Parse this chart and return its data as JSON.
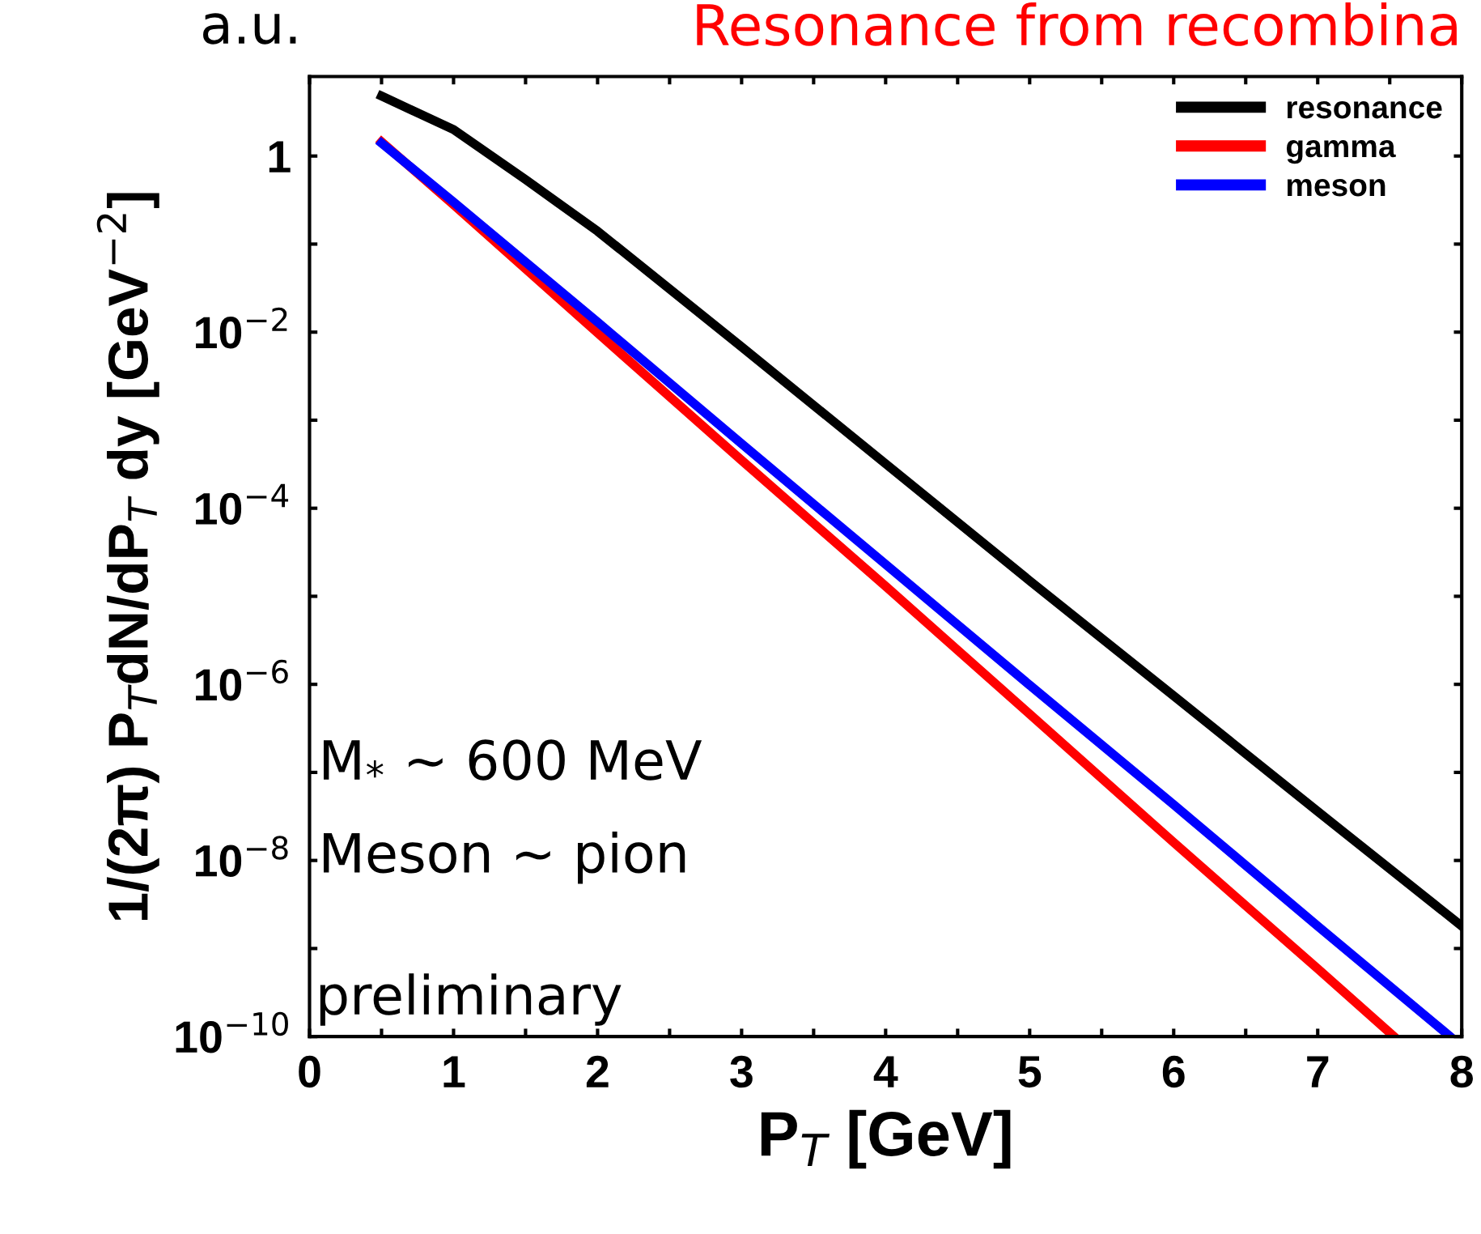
{
  "chart_data": {
    "type": "line",
    "title": "Resonance from recombina",
    "xlabel": "P$_{T}$ [GeV]",
    "ylabel": "1/(2π) P$_{T}$dN/dP$_{T}$ dy [GeV$^{−2}$]",
    "log": "y",
    "xlim": [
      0,
      8
    ],
    "ylim": [
      1e-10,
      8
    ],
    "xticks": [
      0,
      {
        "value": 0.5,
        "label": null
      },
      1,
      {
        "value": 1.5,
        "label": null
      },
      2,
      {
        "value": 2.5,
        "label": null
      },
      3,
      {
        "value": 3.5,
        "label": null
      },
      4,
      {
        "value": 4.5,
        "label": null
      },
      5,
      {
        "value": 5.5,
        "label": null
      },
      6,
      {
        "value": 6.5,
        "label": null
      },
      7,
      {
        "value": 7.5,
        "label": null
      },
      8
    ],
    "yticks": [
      {
        "value": 1e-10,
        "label": "10$^{−10}$"
      },
      {
        "value": 1e-09,
        "label": null
      },
      {
        "value": 1e-08,
        "label": "10$^{−8}$"
      },
      {
        "value": 1e-07,
        "label": null
      },
      {
        "value": 1e-06,
        "label": "10$^{−6}$"
      },
      {
        "value": 1e-05,
        "label": null
      },
      {
        "value": 0.0001,
        "label": "10$^{−4}$"
      },
      {
        "value": 0.001,
        "label": null
      },
      {
        "value": 0.01,
        "label": "10$^{−2}$"
      },
      {
        "value": 0.1,
        "label": null
      },
      1
    ],
    "grid": false,
    "legend": "top right",
    "marker": "none",
    "line_style": "solid",
    "annotations": [
      "a.u.",
      "M$_{*}$ ~ 600 MeV",
      "Meson ~ pion",
      "preliminary"
    ],
    "series": [
      {
        "name": "resonance",
        "color": "#000000",
        "x": [
          0.5,
          1,
          1.5,
          2,
          3,
          4,
          5,
          6,
          7,
          8
        ],
        "values": [
          4.8,
          2.0,
          0.54,
          0.14,
          0.0068,
          0.00032,
          1.5e-05,
          7.4e-07,
          3.6e-08,
          1.8e-09
        ]
      },
      {
        "name": "gamma",
        "color": "#ff0000",
        "x": [
          0.5,
          1,
          2,
          3,
          4,
          5,
          6,
          7,
          7.53
        ],
        "values": [
          1.45,
          0.28,
          0.0098,
          0.00035,
          1.3e-05,
          4.6e-07,
          1.6e-08,
          5.9e-10,
          1e-10
        ]
      },
      {
        "name": "meson",
        "color": "#0000ff",
        "x": [
          0.5,
          1,
          2,
          3,
          4,
          5,
          6,
          7,
          7.92
        ],
        "values": [
          1.4,
          0.3,
          0.013,
          0.00054,
          2.3e-05,
          9.8e-07,
          4.3e-08,
          1.8e-09,
          1e-10
        ]
      }
    ]
  }
}
